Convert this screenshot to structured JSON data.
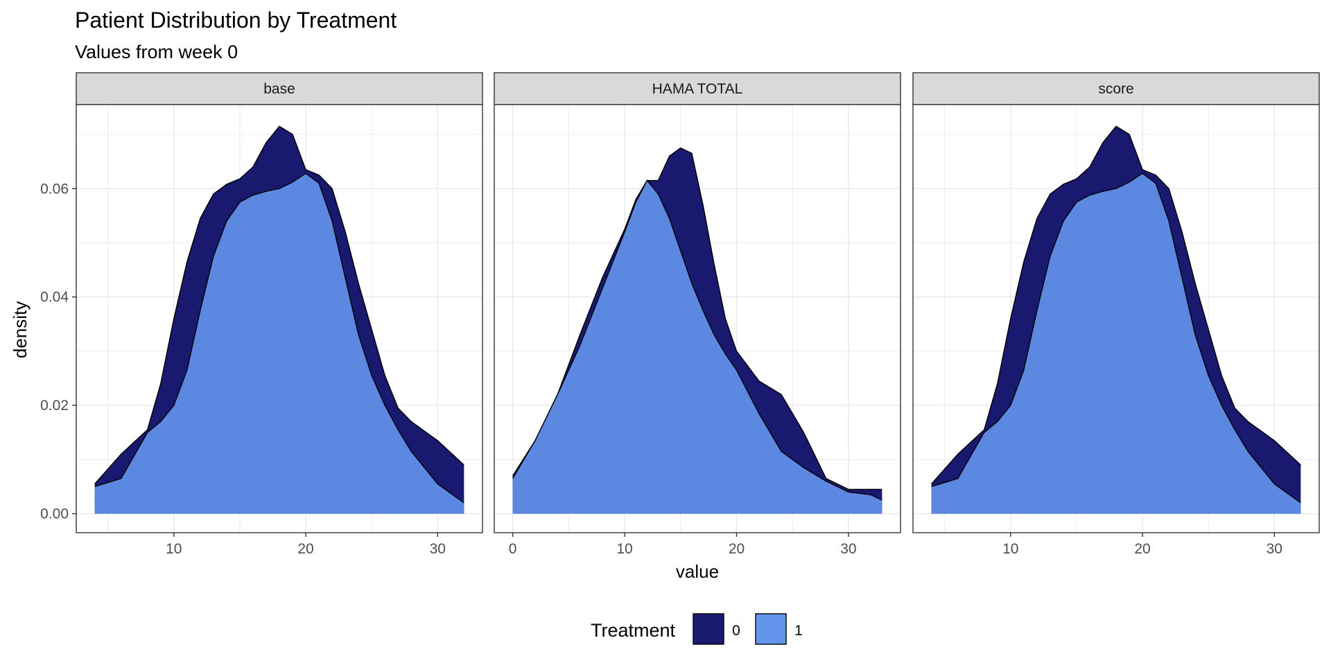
{
  "chart_data": {
    "type": "area",
    "title": "Patient Distribution by Treatment",
    "subtitle": "Values from week 0",
    "xlabel": "value",
    "ylabel": "density",
    "ylim": [
      -0.0035,
      0.0755
    ],
    "yticks": [
      0.0,
      0.02,
      0.04,
      0.06
    ],
    "ytick_labels": [
      "0.00",
      "0.02",
      "0.04",
      "0.06"
    ],
    "grid": true,
    "legend": {
      "title": "Treatment",
      "position": "bottom",
      "entries": [
        {
          "label": "0",
          "color": "#191970"
        },
        {
          "label": "1",
          "color": "#6495ED"
        }
      ]
    },
    "colors": {
      "treatment_0": "#191970",
      "treatment_1": "#6495ED",
      "strip_bg": "#D9D9D9",
      "grid": "#EBEBEB"
    },
    "panels": [
      {
        "strip": "base",
        "xlim": [
          2.6,
          33.4
        ],
        "xticks": [
          10,
          20,
          30
        ],
        "xtick_labels": [
          "10",
          "20",
          "30"
        ],
        "series": [
          {
            "name": "0",
            "x": [
              4,
              6,
              8,
              9,
              10,
              11,
              12,
              13,
              14,
              15,
              16,
              17,
              18,
              19,
              20,
              21,
              22,
              23,
              24,
              25,
              26,
              27,
              28,
              30,
              32
            ],
            "y": [
              0.0055,
              0.011,
              0.0155,
              0.024,
              0.036,
              0.0465,
              0.0545,
              0.059,
              0.0608,
              0.0618,
              0.064,
              0.0685,
              0.0715,
              0.07,
              0.0635,
              0.0625,
              0.06,
              0.052,
              0.0425,
              0.034,
              0.0255,
              0.0195,
              0.017,
              0.0135,
              0.009
            ]
          },
          {
            "name": "1",
            "x": [
              4,
              6,
              8,
              9,
              10,
              11,
              12,
              13,
              14,
              15,
              16,
              17,
              18,
              19,
              20,
              21,
              22,
              23,
              24,
              25,
              26,
              27,
              28,
              30,
              32
            ],
            "y": [
              0.005,
              0.0065,
              0.015,
              0.017,
              0.02,
              0.0265,
              0.0375,
              0.0475,
              0.054,
              0.0575,
              0.0588,
              0.0595,
              0.06,
              0.0612,
              0.0628,
              0.061,
              0.054,
              0.0435,
              0.033,
              0.0255,
              0.02,
              0.0155,
              0.0115,
              0.0055,
              0.002
            ]
          }
        ]
      },
      {
        "strip": "HAMA TOTAL",
        "xlim": [
          -1.65,
          34.65
        ],
        "xticks": [
          0,
          10,
          20,
          30
        ],
        "xtick_labels": [
          "0",
          "10",
          "20",
          "30"
        ],
        "series": [
          {
            "name": "0",
            "x": [
              0,
              2,
              4,
              6,
              8,
              10,
              11,
              12,
              13,
              14,
              15,
              16,
              17,
              18,
              19,
              20,
              22,
              24,
              26,
              28,
              30,
              32,
              33
            ],
            "y": [
              0.007,
              0.0135,
              0.022,
              0.033,
              0.0435,
              0.0525,
              0.058,
              0.0615,
              0.0615,
              0.066,
              0.0675,
              0.0665,
              0.057,
              0.046,
              0.036,
              0.03,
              0.0245,
              0.022,
              0.015,
              0.0065,
              0.0045,
              0.0045,
              0.0045
            ]
          },
          {
            "name": "1",
            "x": [
              0,
              2,
              4,
              6,
              8,
              10,
              11,
              12,
              13,
              14,
              15,
              16,
              17,
              18,
              19,
              20,
              22,
              24,
              26,
              28,
              30,
              32,
              33
            ],
            "y": [
              0.0065,
              0.0135,
              0.022,
              0.031,
              0.0415,
              0.052,
              0.0575,
              0.0615,
              0.059,
              0.0545,
              0.0485,
              0.0425,
              0.0375,
              0.033,
              0.0295,
              0.0265,
              0.0185,
              0.0115,
              0.0085,
              0.006,
              0.004,
              0.0035,
              0.0025
            ]
          }
        ]
      },
      {
        "strip": "score",
        "xlim": [
          2.6,
          33.4
        ],
        "xticks": [
          10,
          20,
          30
        ],
        "xtick_labels": [
          "10",
          "20",
          "30"
        ],
        "series": [
          {
            "name": "0",
            "x": [
              4,
              6,
              8,
              9,
              10,
              11,
              12,
              13,
              14,
              15,
              16,
              17,
              18,
              19,
              20,
              21,
              22,
              23,
              24,
              25,
              26,
              27,
              28,
              30,
              32
            ],
            "y": [
              0.0055,
              0.011,
              0.0155,
              0.024,
              0.036,
              0.0465,
              0.0545,
              0.059,
              0.0608,
              0.0618,
              0.064,
              0.0685,
              0.0715,
              0.07,
              0.0635,
              0.0625,
              0.06,
              0.052,
              0.0425,
              0.034,
              0.0255,
              0.0195,
              0.017,
              0.0135,
              0.009
            ]
          },
          {
            "name": "1",
            "x": [
              4,
              6,
              8,
              9,
              10,
              11,
              12,
              13,
              14,
              15,
              16,
              17,
              18,
              19,
              20,
              21,
              22,
              23,
              24,
              25,
              26,
              27,
              28,
              30,
              32
            ],
            "y": [
              0.005,
              0.0065,
              0.015,
              0.017,
              0.02,
              0.0265,
              0.0375,
              0.0475,
              0.054,
              0.0575,
              0.0588,
              0.0595,
              0.06,
              0.0612,
              0.0628,
              0.061,
              0.054,
              0.0435,
              0.033,
              0.0255,
              0.02,
              0.0155,
              0.0115,
              0.0055,
              0.002
            ]
          }
        ]
      }
    ]
  }
}
